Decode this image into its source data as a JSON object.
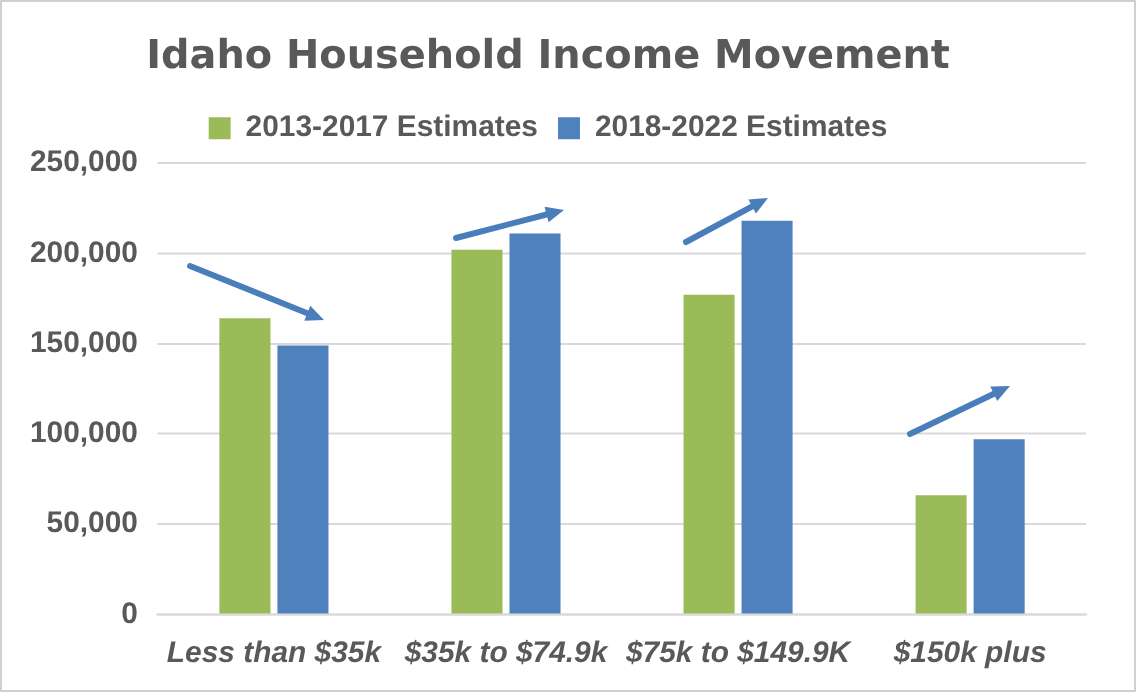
{
  "chart_data": {
    "type": "bar",
    "title": "Idaho Household Income Movement",
    "categories": [
      "Less than $35k",
      "$35k to $74.9k",
      "$75k to $149.9K",
      "$150k plus"
    ],
    "series": [
      {
        "name": "2013-2017 Estimates",
        "color": "#9bbb59",
        "values": [
          164000,
          202000,
          177000,
          66000
        ]
      },
      {
        "name": "2018-2022 Estimates",
        "color": "#4f81bd",
        "values": [
          149000,
          211000,
          218000,
          97000
        ]
      }
    ],
    "ylim": [
      0,
      250000
    ],
    "yticks": [
      {
        "value": 0,
        "label": "0"
      },
      {
        "value": 50000,
        "label": "50,000"
      },
      {
        "value": 100000,
        "label": "100,000"
      },
      {
        "value": 150000,
        "label": "150,000"
      },
      {
        "value": 200000,
        "label": "200,000"
      },
      {
        "value": 250000,
        "label": "250,000"
      }
    ],
    "grid": "y",
    "legend": "top"
  }
}
